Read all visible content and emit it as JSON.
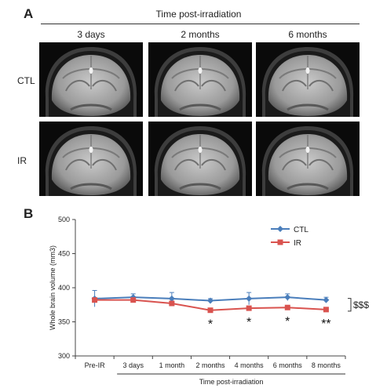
{
  "panel_a": {
    "letter": "A",
    "title": "Time post-irradiation",
    "columns": [
      "3 days",
      "2 months",
      "6 months"
    ],
    "rows": [
      "CTL",
      "IR"
    ]
  },
  "panel_b": {
    "letter": "B"
  },
  "chart_data": {
    "type": "line",
    "categories": [
      "Pre-IR",
      "3 days",
      "1 month",
      "2 months",
      "4 months",
      "6 months",
      "8 months"
    ],
    "series": [
      {
        "name": "CTL",
        "color": "#4a7ebb",
        "marker": "diamond",
        "values": [
          384,
          386,
          384,
          381,
          384,
          386,
          382
        ],
        "error": [
          12,
          5,
          9,
          3,
          9,
          5,
          4
        ]
      },
      {
        "name": "IR",
        "color": "#d9534f",
        "marker": "square",
        "values": [
          382,
          382,
          377,
          367,
          370,
          371,
          368
        ],
        "error": [
          3,
          3,
          3,
          3,
          3,
          3,
          3
        ]
      }
    ],
    "xlabel": "Time post-irradiation",
    "ylabel": "Whole brain volume (mm3)",
    "ylim": [
      300,
      500
    ],
    "yticks": [
      300,
      350,
      400,
      450,
      500
    ],
    "legend_position": "top-right",
    "annotations": {
      "bracket": "$$$",
      "stars": [
        {
          "category": "2 months",
          "text": "*"
        },
        {
          "category": "4 months",
          "text": "*"
        },
        {
          "category": "6 months",
          "text": "*"
        },
        {
          "category": "8 months",
          "text": "**"
        }
      ]
    },
    "grid": false
  }
}
